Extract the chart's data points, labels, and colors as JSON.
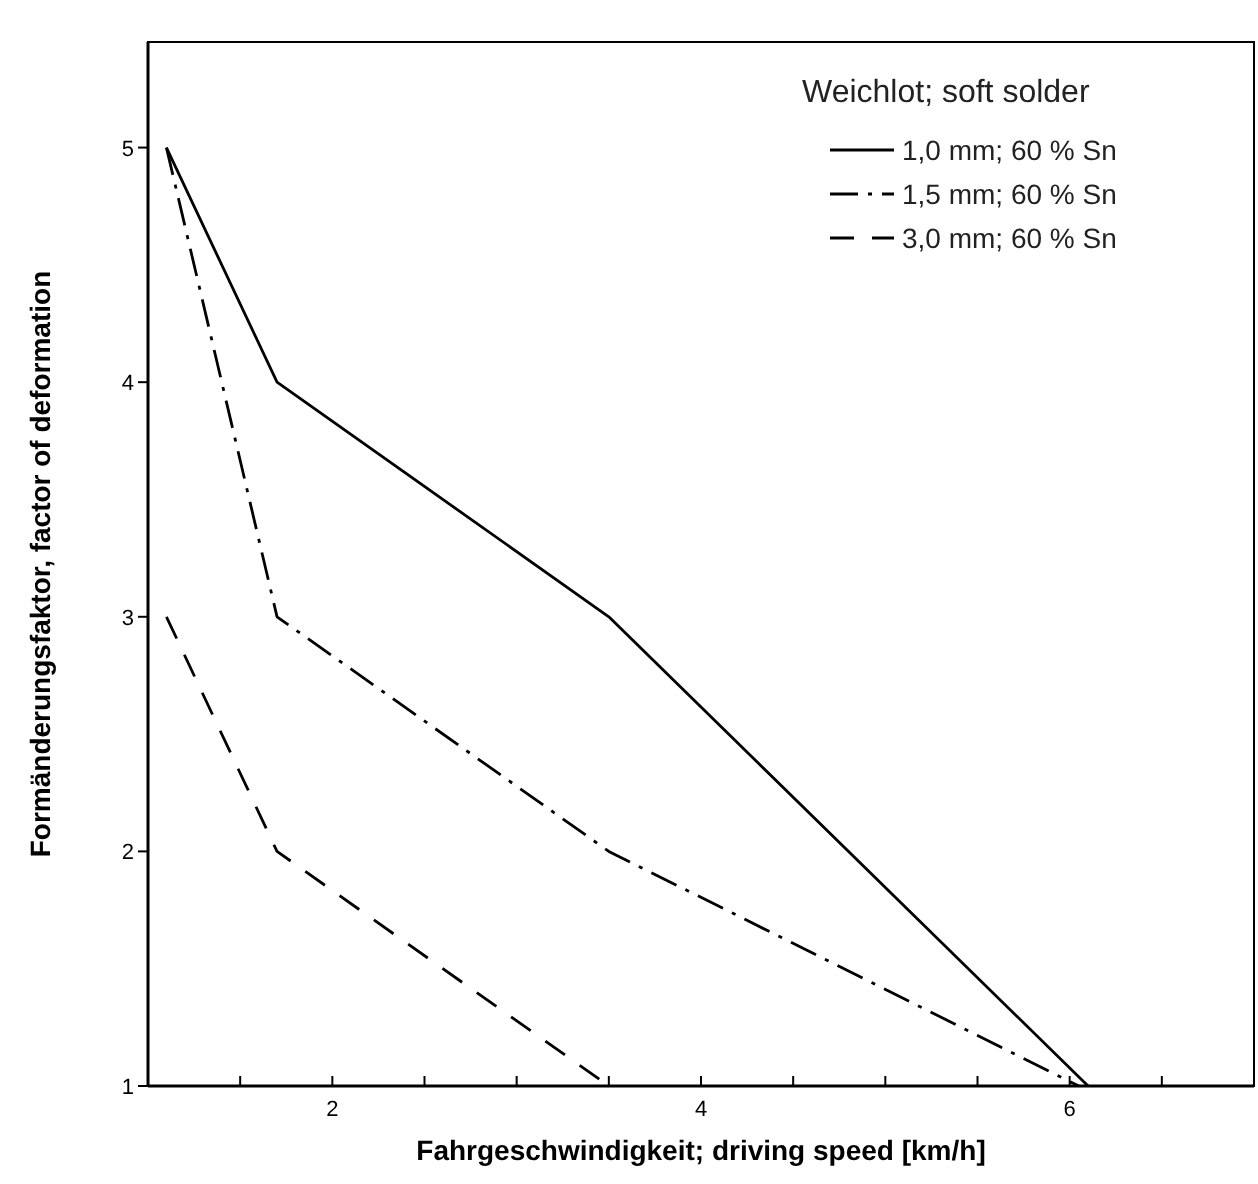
{
  "chart_data": {
    "type": "line",
    "xlabel": "Fahrgeschwindigkeit; driving speed [km/h]",
    "ylabel": "Formänderungsfaktor, factor of deformation",
    "legend_title": "Weichlot; soft solder",
    "legend": "top right",
    "grid": false,
    "xlim": [
      1,
      7
    ],
    "ylim": [
      1,
      5.45
    ],
    "xticks": [
      {
        "value": 1.5,
        "label": null
      },
      2,
      {
        "value": 2.5,
        "label": null
      },
      {
        "value": 3,
        "label": null
      },
      {
        "value": 3.5,
        "label": null
      },
      4,
      {
        "value": 4.5,
        "label": null
      },
      {
        "value": 5,
        "label": null
      },
      {
        "value": 5.5,
        "label": null
      },
      6,
      {
        "value": 6.5,
        "label": null
      }
    ],
    "yticks": [
      1,
      2,
      3,
      4,
      5
    ],
    "series": [
      {
        "name": "1,0 mm; 60 % Sn",
        "color": "#000000",
        "line_style": "solid",
        "x": [
          1.1,
          1.7,
          3.5,
          6.1
        ],
        "values": [
          5,
          4,
          3,
          1
        ]
      },
      {
        "name": "1,5 mm; 60 % Sn",
        "color": "#000000",
        "line_style": "dashdot",
        "x": [
          1.1,
          1.7,
          3.5,
          6.05
        ],
        "values": [
          5,
          3,
          2,
          1
        ]
      },
      {
        "name": "3,0 mm; 60 % Sn",
        "color": "#000000",
        "line_style": "dashed",
        "x": [
          1.1,
          1.7,
          3.5
        ],
        "values": [
          3,
          2,
          1
        ]
      }
    ]
  }
}
